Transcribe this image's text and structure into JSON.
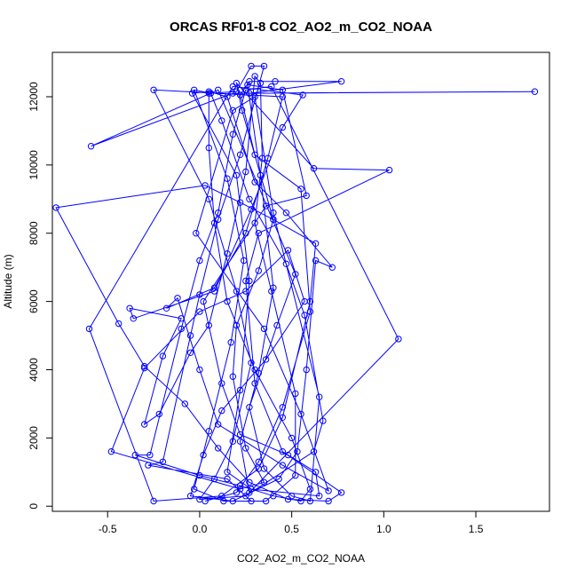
{
  "chart_data": {
    "type": "line",
    "title": "ORCAS RF01-8 CO2_AO2_m_CO2_NOAA",
    "xlabel": "CO2_AO2_m_CO2_NOAA",
    "ylabel": "Altitude (m)",
    "xlim": [
      -0.8,
      1.9
    ],
    "ylim": [
      -150,
      13300
    ],
    "x_ticks": [
      -0.5,
      0.0,
      0.5,
      1.0,
      1.5
    ],
    "x_tick_labels": [
      "-0.5",
      "0.0",
      "0.5",
      "1.0",
      "1.5"
    ],
    "y_ticks": [
      0,
      2000,
      4000,
      6000,
      8000,
      10000,
      12000
    ],
    "y_tick_labels": [
      "0",
      "2000",
      "4000",
      "6000",
      "8000",
      "10000",
      "12000"
    ],
    "grid": false,
    "legend": "none",
    "series_color": "#0000ff",
    "series": [
      {
        "marker": "open-circle",
        "points": [
          [
            0.03,
            150
          ],
          [
            0.2,
            400
          ],
          [
            0.32,
            1300
          ],
          [
            0.45,
            2900
          ],
          [
            0.6,
            5700
          ],
          [
            0.55,
            9300
          ],
          [
            0.3,
            10300
          ],
          [
            0.22,
            12050
          ],
          [
            0.27,
            12450
          ],
          [
            0.41,
            12450
          ],
          [
            0.77,
            12450
          ],
          [
            0.27,
            12100
          ],
          [
            1.82,
            12150
          ],
          [
            0.18,
            12100
          ],
          [
            -0.59,
            10550
          ],
          [
            0.1,
            12200
          ],
          [
            0.52,
            6800
          ],
          [
            0.42,
            5300
          ],
          [
            0.27,
            2900
          ],
          [
            0.35,
            1100
          ],
          [
            0.5,
            300
          ],
          [
            0.6,
            150
          ],
          [
            0.65,
            3200
          ],
          [
            0.4,
            8600
          ],
          [
            0.3,
            12000
          ],
          [
            0.18,
            11600
          ],
          [
            -0.02,
            8000
          ],
          [
            0.35,
            5200
          ],
          [
            0.55,
            2700
          ],
          [
            0.7,
            450
          ],
          [
            0.45,
            1200
          ],
          [
            0.1,
            2400
          ],
          [
            0.0,
            4000
          ],
          [
            -0.12,
            6100
          ],
          [
            -0.18,
            5800
          ],
          [
            0.08,
            6400
          ],
          [
            0.25,
            8000
          ],
          [
            0.37,
            10200
          ],
          [
            0.45,
            12000
          ],
          [
            -0.25,
            12200
          ],
          [
            0.05,
            9000
          ],
          [
            0.2,
            6300
          ],
          [
            0.28,
            4200
          ],
          [
            0.18,
            1900
          ],
          [
            0.08,
            800
          ],
          [
            0.0,
            200
          ],
          [
            0.25,
            300
          ],
          [
            0.62,
            1600
          ],
          [
            0.67,
            2500
          ],
          [
            0.57,
            5600
          ],
          [
            0.47,
            7100
          ],
          [
            0.27,
            9000
          ],
          [
            0.12,
            11300
          ],
          [
            0.06,
            12100
          ],
          [
            -0.03,
            12200
          ],
          [
            0.15,
            9600
          ],
          [
            0.24,
            7200
          ],
          [
            0.17,
            4800
          ],
          [
            0.05,
            2200
          ],
          [
            -0.03,
            500
          ],
          [
            0.13,
            150
          ],
          [
            0.36,
            150
          ],
          [
            0.52,
            900
          ],
          [
            0.52,
            3300
          ],
          [
            0.39,
            6300
          ],
          [
            0.3,
            8300
          ],
          [
            0.34,
            10200
          ],
          [
            0.33,
            12400
          ],
          [
            0.3,
            12600
          ],
          [
            0.25,
            9800
          ],
          [
            0.15,
            7400
          ],
          [
            0.05,
            5300
          ],
          [
            -0.05,
            4500
          ],
          [
            -0.22,
            2700
          ],
          [
            -0.3,
            2400
          ],
          [
            -0.2,
            4400
          ],
          [
            -0.1,
            5500
          ],
          [
            -0.38,
            5800
          ],
          [
            -0.36,
            5500
          ],
          [
            0.08,
            6300
          ],
          [
            0.28,
            8700
          ],
          [
            0.45,
            11100
          ],
          [
            0.56,
            12050
          ],
          [
            0.18,
            12300
          ],
          [
            -0.6,
            5200
          ],
          [
            -0.25,
            150
          ],
          [
            0.12,
            300
          ],
          [
            0.32,
            1100
          ],
          [
            0.45,
            2600
          ],
          [
            0.6,
            6000
          ],
          [
            0.63,
            7700
          ],
          [
            0.4,
            8400
          ],
          [
            0.22,
            8900
          ],
          [
            0.03,
            9400
          ],
          [
            -0.78,
            8750
          ],
          [
            -0.44,
            5350
          ],
          [
            -0.3,
            4100
          ],
          [
            -0.08,
            3000
          ],
          [
            0.1,
            1700
          ],
          [
            0.27,
            700
          ],
          [
            0.48,
            200
          ],
          [
            0.7,
            150
          ],
          [
            0.77,
            400
          ],
          [
            0.45,
            1600
          ],
          [
            0.3,
            3600
          ],
          [
            0.25,
            6600
          ],
          [
            0.32,
            8000
          ],
          [
            1.03,
            9850
          ],
          [
            0.62,
            9900
          ],
          [
            0.2,
            12400
          ],
          [
            0.23,
            11600
          ],
          [
            0.4,
            8400
          ],
          [
            0.32,
            6900
          ],
          [
            0.2,
            5300
          ],
          [
            0.18,
            3800
          ],
          [
            0.25,
            1700
          ],
          [
            0.35,
            700
          ],
          [
            0.22,
            500
          ],
          [
            -0.48,
            1600
          ],
          [
            -0.3,
            4050
          ],
          [
            0.0,
            5700
          ],
          [
            0.25,
            6300
          ],
          [
            0.48,
            7500
          ],
          [
            0.57,
            6000
          ],
          [
            0.36,
            4300
          ],
          [
            0.12,
            2800
          ],
          [
            0.02,
            1500
          ],
          [
            -0.05,
            300
          ],
          [
            0.18,
            150
          ],
          [
            0.43,
            800
          ],
          [
            0.53,
            1600
          ],
          [
            0.58,
            4000
          ],
          [
            0.63,
            7200
          ],
          [
            0.72,
            7000
          ],
          [
            0.47,
            8600
          ],
          [
            0.3,
            9500
          ],
          [
            0.15,
            12000
          ],
          [
            0.05,
            12150
          ],
          [
            -0.04,
            12100
          ],
          [
            0.2,
            9700
          ],
          [
            0.27,
            6600
          ],
          [
            0.22,
            3400
          ],
          [
            0.15,
            1000
          ],
          [
            0.28,
            500
          ],
          [
            0.65,
            300
          ],
          [
            0.63,
            1000
          ],
          [
            0.48,
            1500
          ],
          [
            0.22,
            2100
          ],
          [
            0.12,
            3600
          ],
          [
            0.02,
            6000
          ],
          [
            0.36,
            8800
          ],
          [
            0.58,
            9100
          ],
          [
            0.45,
            12200
          ],
          [
            0.26,
            12350
          ],
          [
            0.33,
            9700
          ],
          [
            0.4,
            6400
          ],
          [
            0.32,
            3900
          ],
          [
            0.22,
            1900
          ],
          [
            0.27,
            400
          ],
          [
            1.08,
            4900
          ],
          [
            0.39,
            12300
          ],
          [
            0.25,
            12200
          ],
          [
            0.18,
            10900
          ],
          [
            0.1,
            8600
          ],
          [
            0.0,
            7200
          ],
          [
            -0.1,
            5200
          ],
          [
            -0.27,
            1500
          ],
          [
            -0.35,
            1500
          ],
          [
            0.0,
            900
          ],
          [
            0.22,
            600
          ],
          [
            0.4,
            300
          ],
          [
            0.55,
            150
          ],
          [
            0.6,
            500
          ],
          [
            0.5,
            2000
          ],
          [
            0.3,
            4000
          ],
          [
            0.15,
            6000
          ],
          [
            0.08,
            8300
          ],
          [
            0.05,
            10500
          ],
          [
            0.05,
            12100
          ],
          [
            0.2,
            12150
          ],
          [
            0.28,
            12900
          ],
          [
            0.35,
            12900
          ],
          [
            0.22,
            10300
          ],
          [
            0.1,
            8400
          ],
          [
            0.0,
            6200
          ],
          [
            -0.05,
            5000
          ],
          [
            -0.2,
            1300
          ],
          [
            -0.28,
            1200
          ],
          [
            0.15,
            800
          ],
          [
            0.28,
            150
          ]
        ]
      }
    ]
  }
}
